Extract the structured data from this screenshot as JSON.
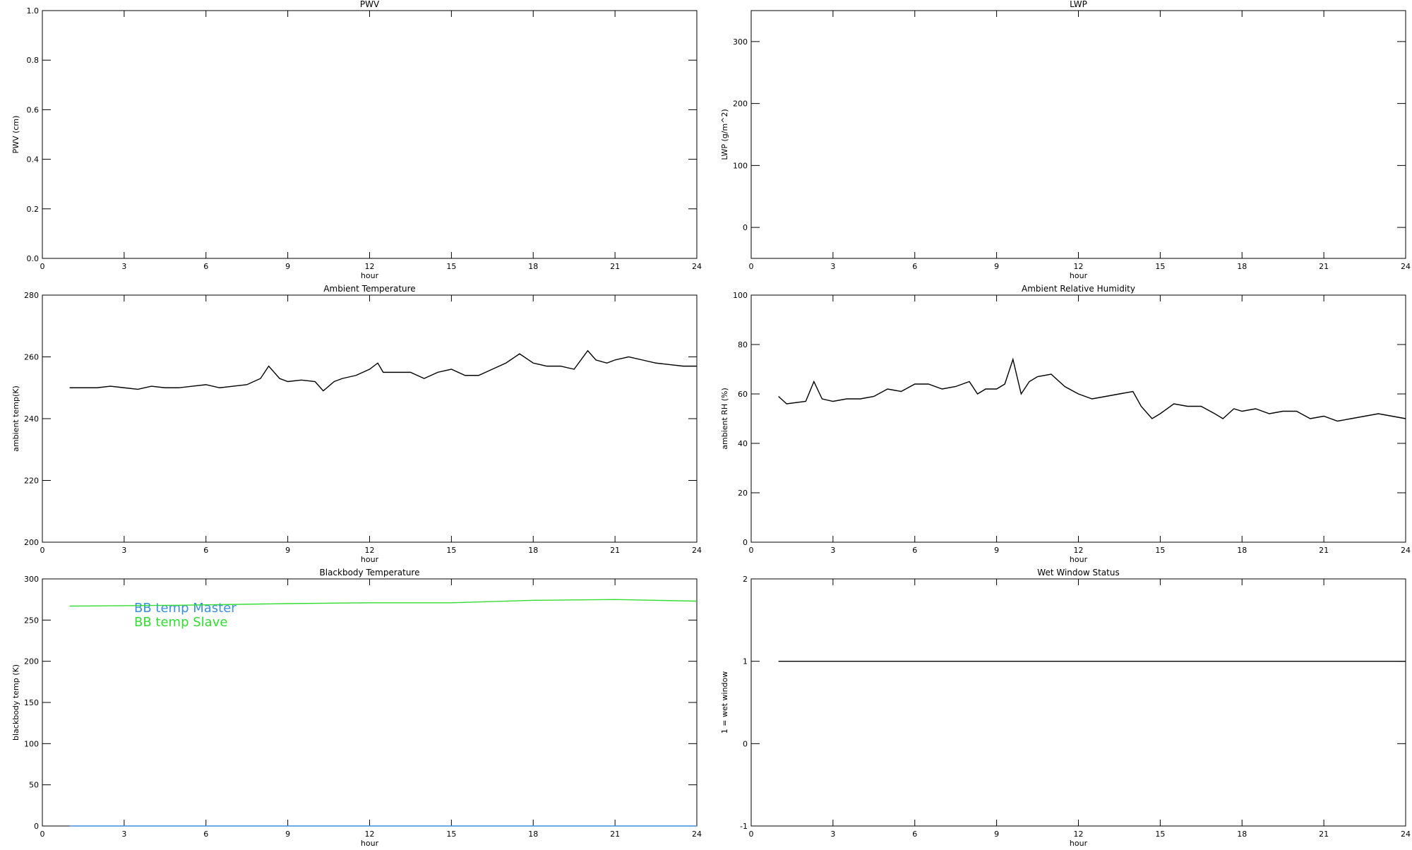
{
  "chart_data": [
    {
      "type": "line",
      "title": "PWV",
      "xlabel": "hour",
      "ylabel": "PWV (cm)",
      "xlim": [
        0,
        24
      ],
      "xticks": [
        0,
        3,
        6,
        9,
        12,
        15,
        18,
        21,
        24
      ],
      "ylim": [
        0,
        1
      ],
      "yticks": [
        {
          "value": 0,
          "label": "0.0"
        },
        0.2,
        0.4,
        0.6,
        0.8,
        {
          "value": 1,
          "label": "1.0"
        }
      ],
      "series": []
    },
    {
      "type": "line",
      "title": "LWP",
      "xlabel": "hour",
      "ylabel": "LWP (g/m^2)",
      "xlim": [
        0,
        24
      ],
      "xticks": [
        0,
        3,
        6,
        9,
        12,
        15,
        18,
        21,
        24
      ],
      "ylim": [
        -50,
        350
      ],
      "yticks": [
        0,
        100,
        200,
        300
      ],
      "series": []
    },
    {
      "type": "line",
      "title": "Ambient Temperature",
      "xlabel": "hour",
      "ylabel": "ambient temp(K)",
      "xlim": [
        0,
        24
      ],
      "xticks": [
        0,
        3,
        6,
        9,
        12,
        15,
        18,
        21,
        24
      ],
      "ylim": [
        200,
        280
      ],
      "yticks": [
        200,
        220,
        240,
        260,
        280
      ],
      "series": [
        {
          "color": "#000000",
          "x": [
            1,
            1.5,
            2,
            2.5,
            3,
            3.5,
            4,
            4.5,
            5,
            5.5,
            6,
            6.5,
            7,
            7.5,
            8,
            8.3,
            8.7,
            9,
            9.5,
            10,
            10.3,
            10.7,
            11,
            11.5,
            12,
            12.3,
            12.5,
            13,
            13.5,
            14,
            14.5,
            15,
            15.5,
            16,
            16.5,
            17,
            17.5,
            18,
            18.5,
            19,
            19.5,
            20,
            20.3,
            20.7,
            21,
            21.5,
            22,
            22.5,
            23,
            23.5,
            24
          ],
          "values": [
            250,
            250,
            250,
            250.5,
            250,
            249.5,
            250.5,
            250,
            250,
            250.5,
            251,
            250,
            250.5,
            251,
            253,
            257,
            253,
            252,
            252.5,
            252,
            249,
            252,
            253,
            254,
            256,
            258,
            255,
            255,
            255,
            253,
            255,
            256,
            254,
            254,
            256,
            258,
            261,
            258,
            257,
            257,
            256,
            262,
            259,
            258,
            259,
            260,
            259,
            258,
            257.5,
            257,
            257
          ]
        }
      ]
    },
    {
      "type": "line",
      "title": "Ambient Relative Humidity",
      "xlabel": "hour",
      "ylabel": "ambient RH (%)",
      "xlim": [
        0,
        24
      ],
      "xticks": [
        0,
        3,
        6,
        9,
        12,
        15,
        18,
        21,
        24
      ],
      "ylim": [
        0,
        100
      ],
      "yticks": [
        0,
        20,
        40,
        60,
        80,
        100
      ],
      "series": [
        {
          "color": "#000000",
          "x": [
            1,
            1.3,
            2,
            2.3,
            2.6,
            3,
            3.5,
            4,
            4.5,
            5,
            5.5,
            6,
            6.5,
            7,
            7.5,
            8,
            8.3,
            8.6,
            9,
            9.3,
            9.6,
            9.9,
            10.2,
            10.5,
            11,
            11.5,
            12,
            12.5,
            13,
            13.5,
            14,
            14.3,
            14.7,
            15,
            15.5,
            16,
            16.5,
            17,
            17.3,
            17.7,
            18,
            18.5,
            19,
            19.5,
            20,
            20.5,
            21,
            21.5,
            22,
            22.5,
            23,
            23.5,
            24
          ],
          "values": [
            59,
            56,
            57,
            65,
            58,
            57,
            58,
            58,
            59,
            62,
            61,
            64,
            64,
            62,
            63,
            65,
            60,
            62,
            62,
            64,
            74,
            60,
            65,
            67,
            68,
            63,
            60,
            58,
            59,
            60,
            61,
            55,
            50,
            52,
            56,
            55,
            55,
            52,
            50,
            54,
            53,
            54,
            52,
            53,
            53,
            50,
            51,
            49,
            50,
            51,
            52,
            51,
            50
          ]
        }
      ]
    },
    {
      "type": "line",
      "title": "Blackbody Temperature",
      "xlabel": "hour",
      "ylabel": "blackbody temp (K)",
      "xlim": [
        0,
        24
      ],
      "xticks": [
        0,
        3,
        6,
        9,
        12,
        15,
        18,
        21,
        24
      ],
      "ylim": [
        0,
        300
      ],
      "yticks": [
        0,
        50,
        100,
        150,
        200,
        250,
        300
      ],
      "legend": "upper-left",
      "series": [
        {
          "name": "BB temp Master",
          "color": "#3a8fe0",
          "x": [
            1,
            6,
            12,
            18,
            24
          ],
          "values": [
            0,
            0,
            0,
            0,
            0
          ]
        },
        {
          "name": "BB temp Slave",
          "color": "#33dd33",
          "x": [
            1,
            5,
            9,
            12,
            15,
            18,
            21,
            24
          ],
          "values": [
            267,
            268,
            270,
            271,
            271,
            274,
            275,
            273
          ]
        }
      ]
    },
    {
      "type": "line",
      "title": "Wet Window Status",
      "xlabel": "hour",
      "ylabel": "1 = wet window",
      "xlim": [
        0,
        24
      ],
      "xticks": [
        0,
        3,
        6,
        9,
        12,
        15,
        18,
        21,
        24
      ],
      "ylim": [
        -1,
        2
      ],
      "yticks": [
        -1,
        0,
        1,
        2
      ],
      "series": [
        {
          "color": "#000000",
          "x": [
            1,
            24
          ],
          "values": [
            1,
            1
          ]
        }
      ]
    }
  ]
}
